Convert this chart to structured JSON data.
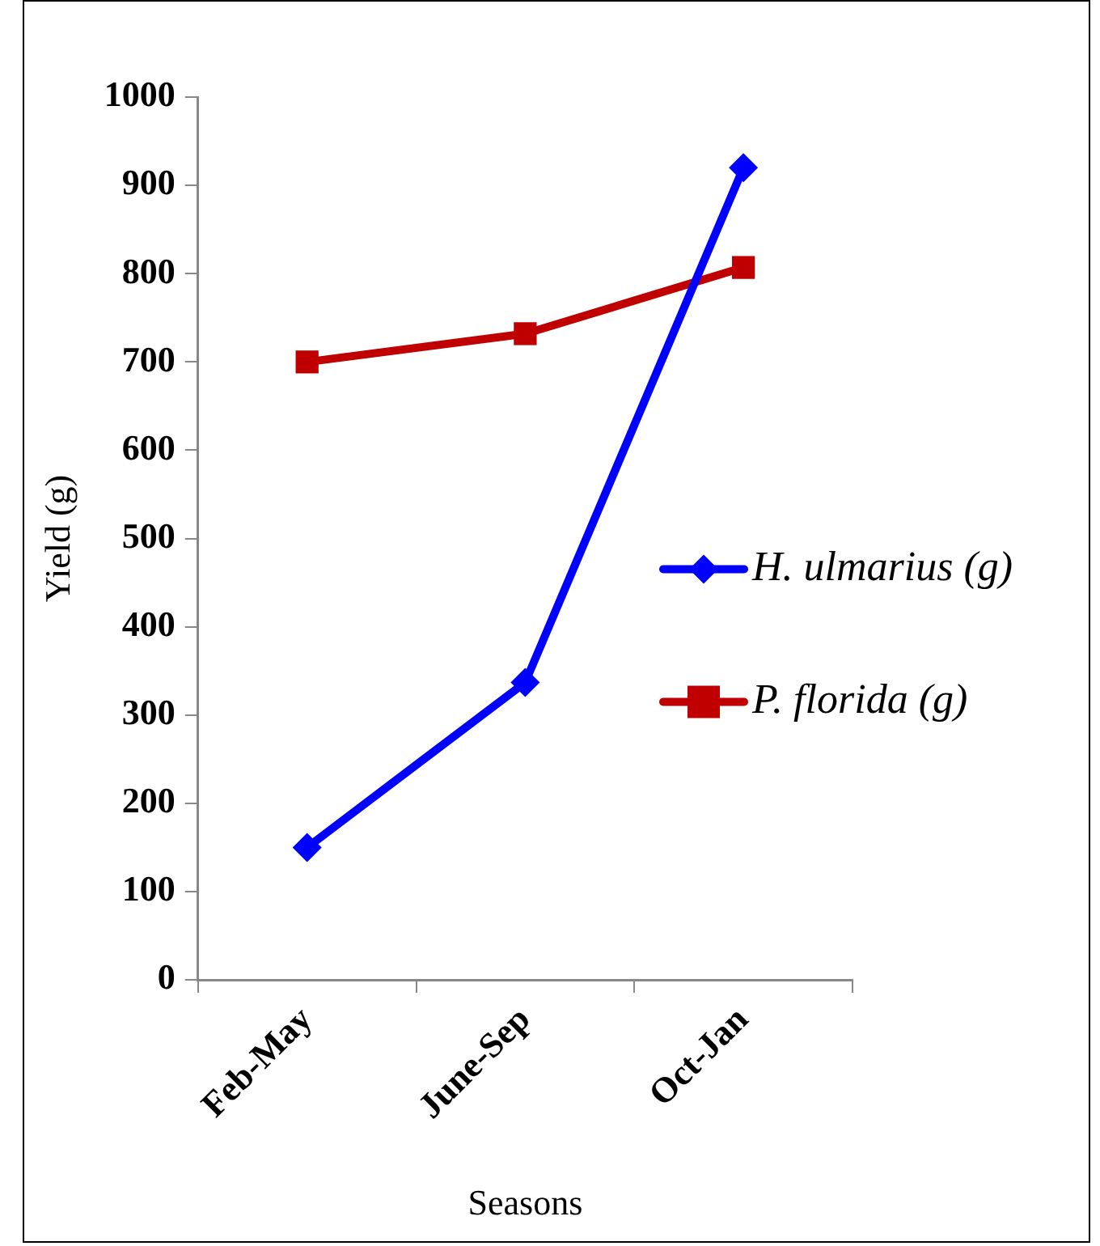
{
  "chart_data": {
    "type": "line",
    "xlabel": "Seasons",
    "ylabel": "Yield (g)",
    "categories": [
      "Feb-May",
      "June-Sep",
      "Oct-Jan"
    ],
    "series": [
      {
        "name": "H. ulmarius (g)",
        "color": "#0000ff",
        "marker": "diamond",
        "values": [
          150,
          337,
          920
        ]
      },
      {
        "name": "P. florida (g)",
        "color": "#c00000",
        "marker": "square",
        "values": [
          700,
          732,
          807
        ]
      }
    ],
    "ylim": [
      0,
      1000
    ],
    "yticks": [
      0,
      100,
      200,
      300,
      400,
      500,
      600,
      700,
      800,
      900,
      1000
    ],
    "grid": false,
    "legend": "right"
  }
}
